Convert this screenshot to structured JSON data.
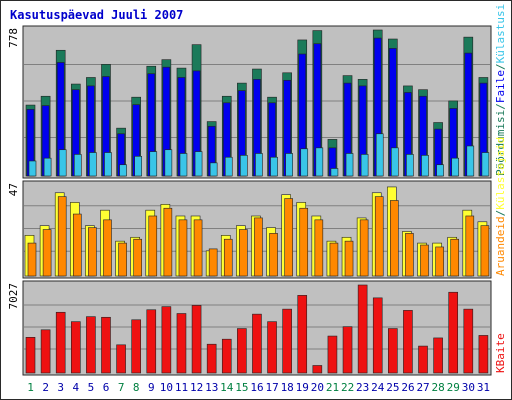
{
  "colors": {
    "frame": "#2a2a2a",
    "background": "#ffffff",
    "panel": "#c0c0c0",
    "title": "#0000cc",
    "grid": "#808080",
    "visits": "#1b7a5a",
    "pages": "#0000ee",
    "hits": "#39c5e8",
    "files": "#ffff33",
    "bandwidth_orange": "#ff8800",
    "kbytes": "#ee1111",
    "weekend_day": "#008040",
    "weekday_day": "#0000aa"
  },
  "chart_data": {
    "type": "bar",
    "title": "Kasutuspäevad Juuli 2007",
    "categories": [
      "1",
      "2",
      "3",
      "4",
      "5",
      "6",
      "7",
      "8",
      "9",
      "10",
      "11",
      "12",
      "13",
      "14",
      "15",
      "16",
      "17",
      "18",
      "19",
      "20",
      "21",
      "22",
      "23",
      "24",
      "25",
      "26",
      "27",
      "28",
      "29",
      "30",
      "31"
    ],
    "weekend_days": [
      "1",
      "7",
      "8",
      "14",
      "15",
      "21",
      "22",
      "28",
      "29"
    ],
    "panels": [
      {
        "name": "top",
        "ymax_label": "778",
        "ymax": 778,
        "right_labels": [
          {
            "text": "Pöördumisi",
            "color": "#1b7a5a"
          },
          {
            "text": "/",
            "color": "#1b7a5a"
          },
          {
            "text": "Faile",
            "color": "#0000ee"
          },
          {
            "text": "/",
            "color": "#1b7a5a"
          },
          {
            "text": "Külastusi",
            "color": "#39c5e8"
          }
        ],
        "series": [
          {
            "values": [
              378,
              425,
              670,
              490,
              525,
              595,
              255,
              420,
              585,
              620,
              575,
              700,
              290,
              425,
              495,
              570,
              420,
              550,
              725,
              775,
              195,
              535,
              515,
              780,
              730,
              480,
              460,
              285,
              400,
              740,
              525
            ]
          },
          {
            "values": [
              355,
              375,
              605,
              460,
              480,
              530,
              225,
              380,
              545,
              580,
              525,
              560,
              265,
              390,
              455,
              515,
              390,
              510,
              650,
              705,
              150,
              495,
              480,
              735,
              680,
              445,
              425,
              250,
              360,
              655,
              495
            ]
          },
          {
            "values": [
              80,
              95,
              140,
              115,
              125,
              125,
              60,
              105,
              130,
              140,
              120,
              130,
              70,
              100,
              110,
              120,
              100,
              120,
              145,
              150,
              40,
              120,
              115,
              225,
              150,
              115,
              110,
              60,
              95,
              160,
              125
            ]
          }
        ]
      },
      {
        "name": "middle",
        "ymax_label": "47",
        "ymax": 47,
        "right_labels": [
          {
            "text": "Aruandeid",
            "color": "#ff8800"
          },
          {
            "text": "/",
            "color": "#1b7a5a"
          },
          {
            "text": "Külastajaid",
            "color": "#ffff33"
          }
        ],
        "series": [
          {
            "values": [
              21,
              26,
              43,
              38,
              26,
              34,
              18,
              20,
              34,
              37,
              31,
              31,
              13,
              21,
              26,
              31,
              25,
              42,
              38,
              31,
              18,
              20,
              30,
              43,
              46,
              23,
              17,
              17,
              20,
              34,
              28
            ]
          },
          {
            "values": [
              17,
              24,
              41,
              32,
              25,
              29,
              17,
              19,
              31,
              35,
              29,
              29,
              14,
              19,
              24,
              30,
              22,
              40,
              35,
              29,
              17,
              18,
              29,
              41,
              39,
              22,
              16,
              15,
              19,
              31,
              26
            ]
          }
        ]
      },
      {
        "name": "bottom",
        "ymax_label": "7027",
        "ymax": 7027,
        "right_labels": [
          {
            "text": "KBaite",
            "color": "#ee1111"
          }
        ],
        "series": [
          {
            "values": [
              2850,
              3450,
              4850,
              4100,
              4500,
              4450,
              2250,
              4250,
              5050,
              5300,
              4750,
              5400,
              2300,
              2700,
              3550,
              4700,
              4100,
              5100,
              6200,
              600,
              2950,
              3700,
              7027,
              6000,
              3550,
              5000,
              2150,
              2800,
              6450,
              5100,
              3000
            ]
          }
        ]
      }
    ]
  }
}
